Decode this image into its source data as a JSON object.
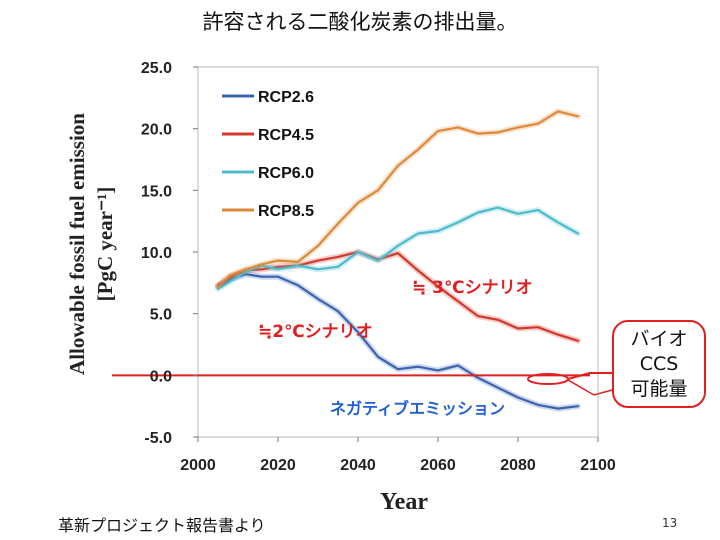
{
  "slide": {
    "title": "許容される二酸化炭素の排出量。",
    "source": "革新プロジェクト報告書より",
    "page_number": "13"
  },
  "annotations": {
    "rcp45_scenario": "≒ 3℃シナリオ",
    "rcp26_scenario": "≒2℃シナリオ",
    "negative": "ネガティブエミッション",
    "callout_lines": [
      "バイオ",
      "CCS",
      "可能量"
    ]
  },
  "colors": {
    "RCP2.6": "#3a64b0",
    "RCP4.5": "#d2392c",
    "RCP6.0": "#4cbccc",
    "RCP8.5": "#de8a3a",
    "annotation_red": "#e02020",
    "annotation_blue": "#1f5fd6"
  },
  "chart_data": {
    "type": "line",
    "ylabel_line1": "Allowable fossil fuel emission",
    "ylabel_line2": "[PgC year⁻¹]",
    "xlabel": "Year",
    "xlim": [
      2000,
      2100
    ],
    "ylim": [
      -5,
      25
    ],
    "xticks": [
      2000,
      2020,
      2040,
      2060,
      2080,
      2100
    ],
    "yticks": [
      -5.0,
      0.0,
      5.0,
      10.0,
      15.0,
      20.0,
      25.0
    ],
    "ytick_labels": [
      "-5.0",
      "0.0",
      "5.0",
      "10.0",
      "15.0",
      "20.0",
      "25.0"
    ],
    "legend_position": "top-left",
    "series": [
      {
        "name": "RCP2.6",
        "x": [
          2005,
          2008,
          2012,
          2016,
          2020,
          2025,
          2030,
          2035,
          2040,
          2045,
          2050,
          2055,
          2060,
          2065,
          2070,
          2075,
          2080,
          2085,
          2090,
          2095
        ],
        "values": [
          7.2,
          7.8,
          8.2,
          8.0,
          8.0,
          7.3,
          6.2,
          5.2,
          3.5,
          1.5,
          0.5,
          0.7,
          0.4,
          0.8,
          -0.2,
          -1.0,
          -1.8,
          -2.4,
          -2.7,
          -2.5
        ]
      },
      {
        "name": "RCP4.5",
        "x": [
          2005,
          2008,
          2012,
          2016,
          2020,
          2025,
          2030,
          2035,
          2040,
          2045,
          2050,
          2055,
          2060,
          2065,
          2070,
          2075,
          2080,
          2085,
          2090,
          2095
        ],
        "values": [
          7.3,
          8.0,
          8.5,
          8.6,
          8.8,
          8.9,
          9.3,
          9.6,
          10.0,
          9.4,
          9.9,
          8.5,
          7.2,
          6.0,
          4.8,
          4.5,
          3.8,
          3.9,
          3.3,
          2.8
        ]
      },
      {
        "name": "RCP6.0",
        "x": [
          2005,
          2008,
          2012,
          2016,
          2020,
          2025,
          2030,
          2035,
          2040,
          2045,
          2050,
          2055,
          2060,
          2065,
          2070,
          2075,
          2080,
          2085,
          2090,
          2095
        ],
        "values": [
          7.0,
          7.6,
          8.4,
          8.9,
          8.6,
          8.9,
          8.6,
          8.8,
          10.0,
          9.3,
          10.5,
          11.5,
          11.7,
          12.4,
          13.2,
          13.6,
          13.1,
          13.4,
          12.4,
          11.5
        ]
      },
      {
        "name": "RCP8.5",
        "x": [
          2005,
          2008,
          2012,
          2016,
          2020,
          2025,
          2030,
          2035,
          2040,
          2045,
          2050,
          2055,
          2060,
          2065,
          2070,
          2075,
          2080,
          2085,
          2090,
          2095
        ],
        "values": [
          7.2,
          8.1,
          8.6,
          9.0,
          9.3,
          9.2,
          10.5,
          12.3,
          14.0,
          15.0,
          17.0,
          18.3,
          19.8,
          20.1,
          19.6,
          19.7,
          20.1,
          20.4,
          21.4,
          21.0
        ]
      }
    ]
  }
}
